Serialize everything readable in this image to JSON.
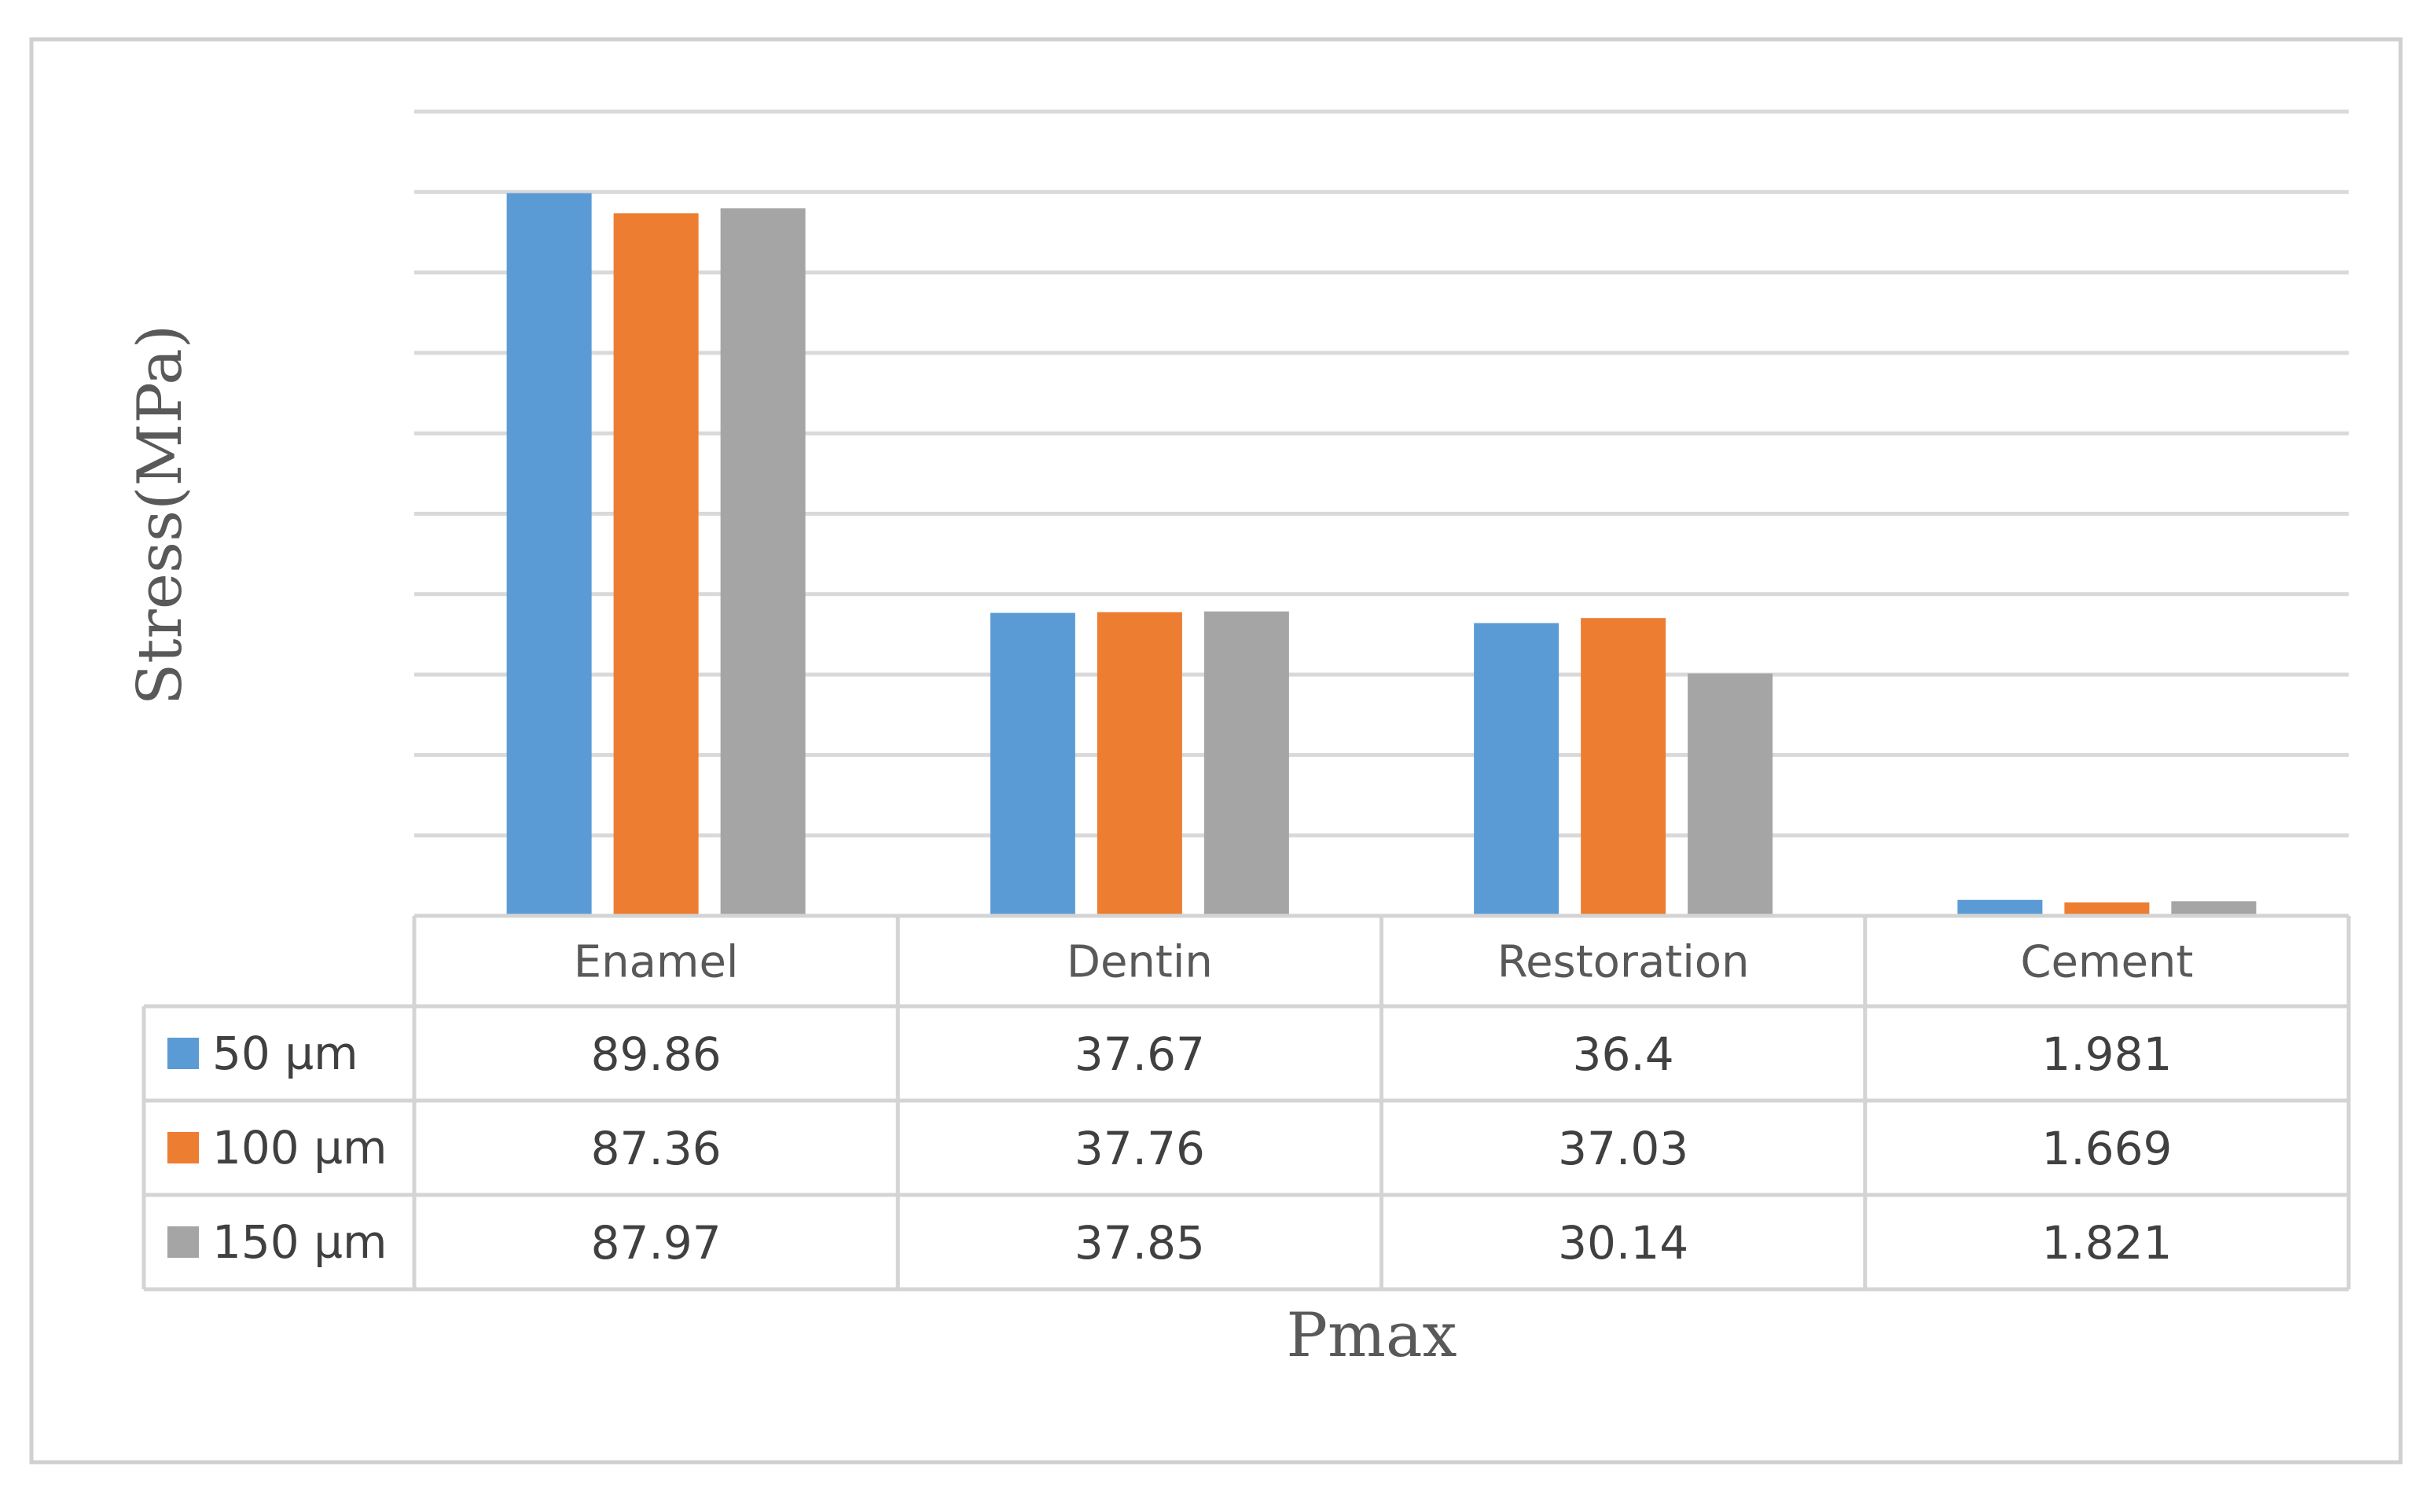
{
  "chart_data": {
    "type": "bar",
    "ylabel": "Stress(MPa)",
    "xlabel": "Pmax",
    "categories": [
      "Enamel",
      "Dentin",
      "Restoration",
      "Cement"
    ],
    "series": [
      {
        "name": "50 µm",
        "color": "#5B9BD5",
        "values": [
          89.86,
          37.67,
          36.4,
          1.981
        ],
        "labels": [
          "89.86",
          "37.67",
          "36.4",
          "1.981"
        ]
      },
      {
        "name": "100 µm",
        "color": "#ED7D31",
        "values": [
          87.36,
          37.76,
          37.03,
          1.669
        ],
        "labels": [
          "87.36",
          "37.76",
          "37.03",
          "1.669"
        ]
      },
      {
        "name": "150 µm",
        "color": "#A5A5A5",
        "values": [
          87.97,
          37.85,
          30.14,
          1.821
        ],
        "labels": [
          "87.97",
          "37.85",
          "30.14",
          "1.821"
        ]
      }
    ],
    "ylim": [
      0,
      100
    ],
    "grid": true,
    "legend": "data-table"
  }
}
